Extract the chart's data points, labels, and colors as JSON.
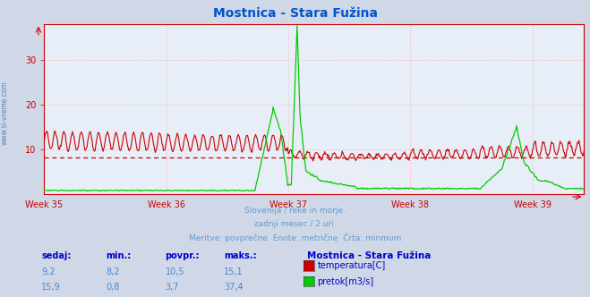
{
  "title": "Mostnica - Stara Fužina",
  "title_color": "#0055cc",
  "bg_color": "#d0d8e8",
  "plot_bg_color": "#e8eef8",
  "grid_color": "#ffaaaa",
  "grid_style": "dotted",
  "axis_color": "#cc0000",
  "ylim": [
    0,
    38
  ],
  "yticks": [
    10,
    20,
    30
  ],
  "week_labels": [
    "Week 35",
    "Week 36",
    "Week 37",
    "Week 38",
    "Week 39"
  ],
  "week_x": [
    0,
    168,
    336,
    504,
    672
  ],
  "n_points": 744,
  "temp_color": "#cc0000",
  "flow_color": "#00cc00",
  "hline_value": 8.2,
  "hline_color": "#cc0000",
  "subtitle_lines": [
    "Slovenija / reke in morje.",
    "zadnji mesec / 2 uri.",
    "Meritve: povprečne  Enote: metrične  Črta: minmum"
  ],
  "subtitle_color": "#6699cc",
  "table_header_color": "#0000cc",
  "table_value_color": "#4488cc",
  "legend_title_color": "#0000cc",
  "watermark_color": "#3366aa",
  "left_label": "www.si-vreme.com",
  "temp_sedaj": "9,2",
  "temp_min": "8,2",
  "temp_povpr": "10,5",
  "temp_maks": "15,1",
  "flow_sedaj": "15,9",
  "flow_min": "0,8",
  "flow_povpr": "3,7",
  "flow_maks": "37,4",
  "station_name": "Mostnica - Stara Fužina"
}
